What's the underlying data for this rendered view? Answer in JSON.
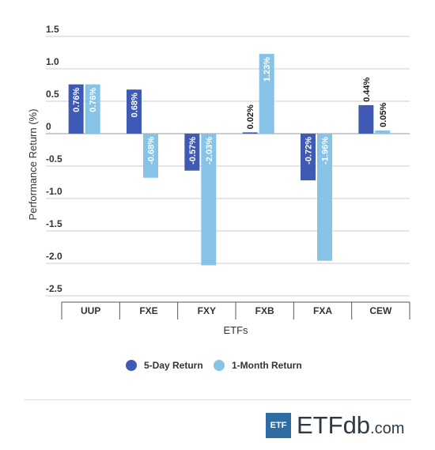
{
  "chart_data": {
    "type": "bar",
    "categories": [
      "UUP",
      "FXE",
      "FXY",
      "FXB",
      "FXA",
      "CEW"
    ],
    "series": [
      {
        "name": "5-Day Return",
        "color": "#3f5ab5",
        "values": [
          0.76,
          0.68,
          -0.57,
          0.02,
          -0.72,
          0.44
        ],
        "labels": [
          "0.76%",
          "0.68%",
          "-0.57%",
          "0.02%",
          "-0.72%",
          "0.44%"
        ]
      },
      {
        "name": "1-Month Return",
        "color": "#86c3e6",
        "values": [
          0.76,
          -0.68,
          -2.03,
          1.23,
          -1.96,
          0.05
        ],
        "labels": [
          "0.76%",
          "-0.68%",
          "-2.03%",
          "1.23%",
          "-1.96%",
          "0.05%"
        ]
      }
    ],
    "xlabel": "ETFs",
    "ylabel": "Performance Return (%)",
    "ylim": [
      -2.5,
      1.5
    ],
    "yticks": [
      1.5,
      1.0,
      0.5,
      0,
      -0.5,
      -1.0,
      -1.5,
      -2.0,
      -2.5
    ],
    "ytick_labels": [
      "1.5",
      "1.0",
      "0.5",
      "0",
      "-0.5",
      "-1.0",
      "-1.5",
      "-2.0",
      "-2.5"
    ],
    "grid": true,
    "legend_position": "bottom"
  },
  "branding": {
    "logo_box_text": "ETF",
    "logo_etf": "ETF",
    "logo_db": "db",
    "logo_com": ".com"
  }
}
